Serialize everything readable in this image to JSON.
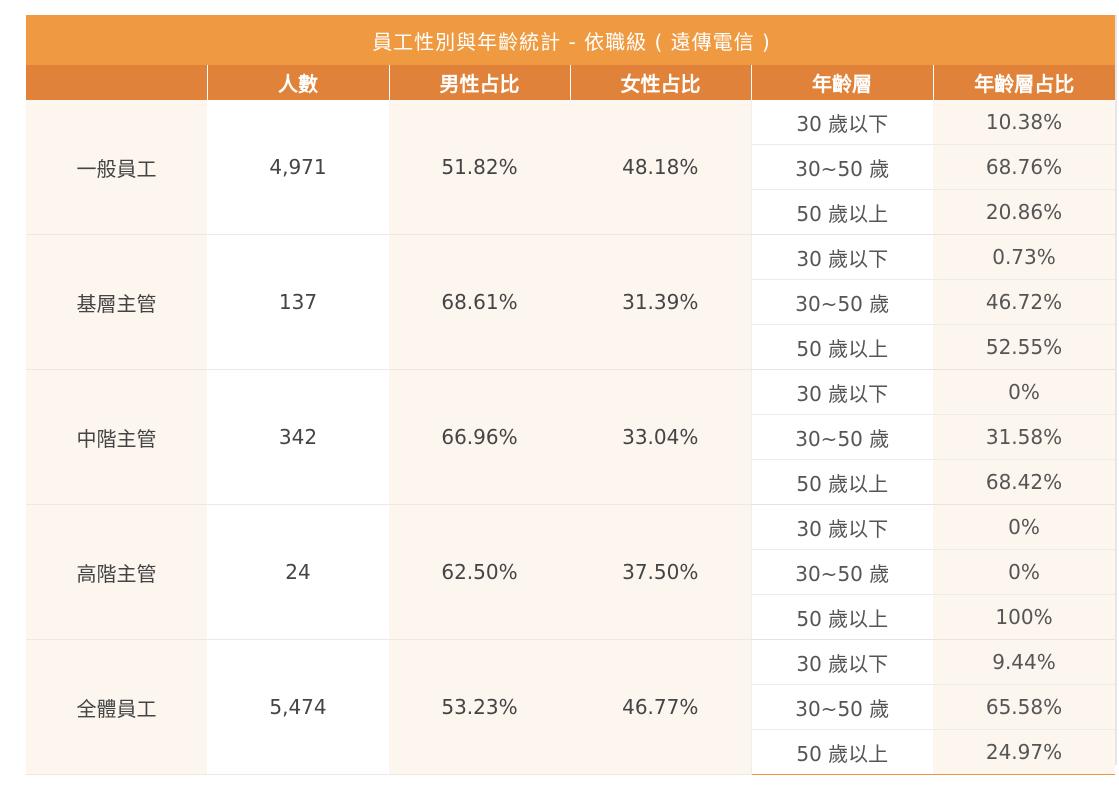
{
  "table": {
    "title": "員工性別與年齡統計 - 依職級 ( 遠傳電信 )",
    "headers": [
      "",
      "人數",
      "男性占比",
      "女性占比",
      "年齡層",
      "年齡層占比"
    ],
    "groups": [
      {
        "level": "一般員工",
        "count": "4,971",
        "male": "51.82%",
        "female": "48.18%",
        "ages": [
          {
            "band": "30 歲以下",
            "pct": "10.38%"
          },
          {
            "band": "30~50 歲",
            "pct": "68.76%"
          },
          {
            "band": "50 歲以上",
            "pct": "20.86%"
          }
        ]
      },
      {
        "level": "基層主管",
        "count": "137",
        "male": "68.61%",
        "female": "31.39%",
        "ages": [
          {
            "band": "30 歲以下",
            "pct": "0.73%"
          },
          {
            "band": "30~50 歲",
            "pct": "46.72%"
          },
          {
            "band": "50 歲以上",
            "pct": "52.55%"
          }
        ]
      },
      {
        "level": "中階主管",
        "count": "342",
        "male": "66.96%",
        "female": "33.04%",
        "ages": [
          {
            "band": "30 歲以下",
            "pct": "0%"
          },
          {
            "band": "30~50 歲",
            "pct": "31.58%"
          },
          {
            "band": "50 歲以上",
            "pct": "68.42%"
          }
        ]
      },
      {
        "level": "高階主管",
        "count": "24",
        "male": "62.50%",
        "female": "37.50%",
        "ages": [
          {
            "band": "30 歲以下",
            "pct": "0%"
          },
          {
            "band": "30~50 歲",
            "pct": "0%"
          },
          {
            "band": "50 歲以上",
            "pct": "100%"
          }
        ]
      },
      {
        "level": "全體員工",
        "count": "5,474",
        "male": "53.23%",
        "female": "46.77%",
        "ages": [
          {
            "band": "30 歲以下",
            "pct": "9.44%"
          },
          {
            "band": "30~50 歲",
            "pct": "65.58%"
          },
          {
            "band": "50 歲以上",
            "pct": "24.97%"
          }
        ]
      }
    ]
  },
  "colors": {
    "title_bg": "#ef9a40",
    "header_bg": "#e1823a",
    "stripe_bg": "#fdf6ef",
    "bottom_rule": "#e8964a"
  }
}
